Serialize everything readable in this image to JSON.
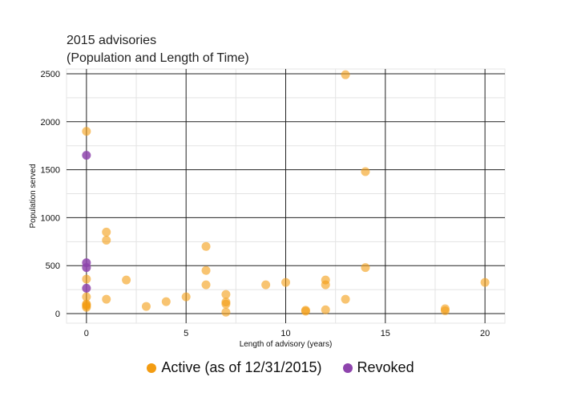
{
  "chart_data": {
    "type": "scatter",
    "title_line1": "2015 advisories",
    "title_line2": "(Population and Length of Time)",
    "xlabel": "Length of advisory (years)",
    "ylabel": "Population served",
    "xlim": [
      -1,
      21
    ],
    "ylim": [
      -100,
      2550
    ],
    "xticks": [
      0,
      5,
      10,
      15,
      20
    ],
    "yticks": [
      0,
      500,
      1000,
      1500,
      2000,
      2500
    ],
    "grid": true,
    "legend_position": "bottom",
    "series": [
      {
        "name": "Active (as of 12/31/2015)",
        "color": "#f39c12",
        "points": [
          [
            0,
            1900
          ],
          [
            0,
            360
          ],
          [
            0,
            175
          ],
          [
            0,
            100
          ],
          [
            0,
            90
          ],
          [
            0,
            80
          ],
          [
            0,
            65
          ],
          [
            1,
            850
          ],
          [
            1,
            765
          ],
          [
            1,
            150
          ],
          [
            2,
            350
          ],
          [
            3,
            75
          ],
          [
            4,
            125
          ],
          [
            5,
            175
          ],
          [
            6,
            700
          ],
          [
            6,
            450
          ],
          [
            6,
            300
          ],
          [
            7,
            200
          ],
          [
            7,
            120
          ],
          [
            7,
            100
          ],
          [
            7,
            15
          ],
          [
            9,
            300
          ],
          [
            10,
            325
          ],
          [
            11,
            35
          ],
          [
            11,
            25
          ],
          [
            12,
            350
          ],
          [
            12,
            300
          ],
          [
            12,
            40
          ],
          [
            13,
            2490
          ],
          [
            13,
            150
          ],
          [
            14,
            1480
          ],
          [
            14,
            480
          ],
          [
            18,
            50
          ],
          [
            18,
            30
          ],
          [
            20,
            325
          ]
        ]
      },
      {
        "name": "Revoked",
        "color": "#8e44ad",
        "points": [
          [
            0,
            1650
          ],
          [
            0,
            530
          ],
          [
            0,
            480
          ],
          [
            0,
            265
          ]
        ]
      }
    ]
  }
}
